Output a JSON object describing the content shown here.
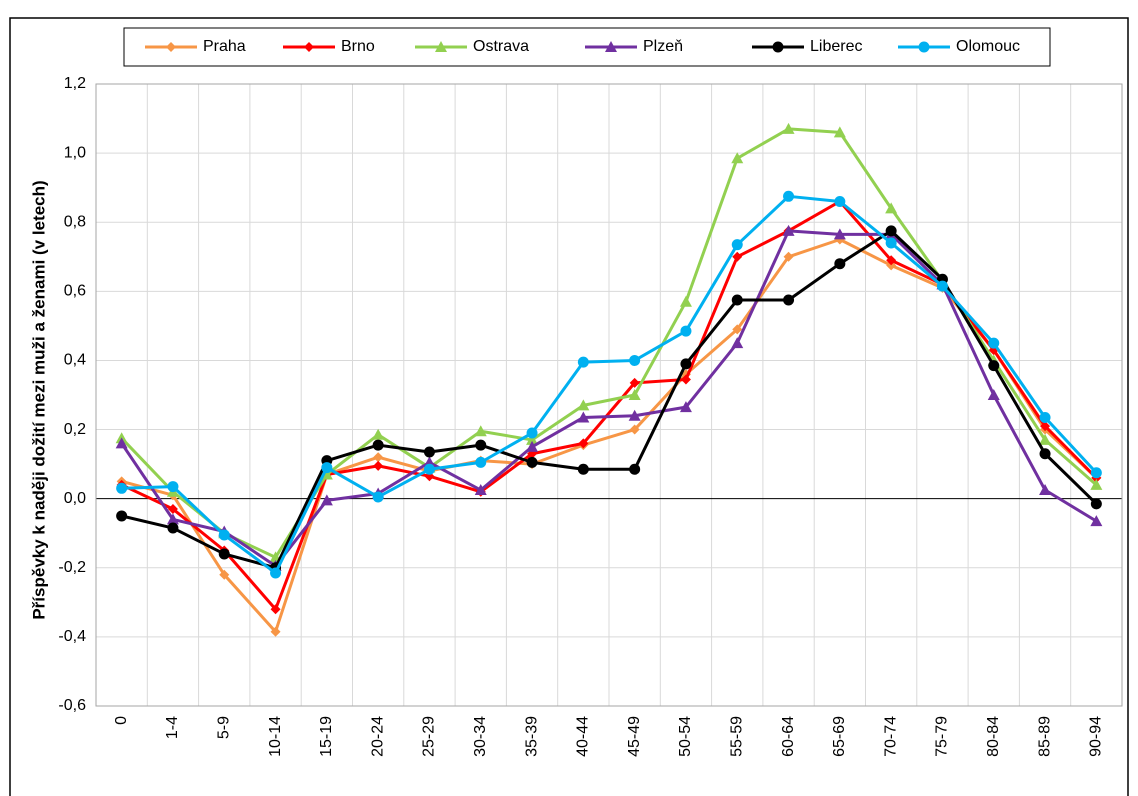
{
  "chart_data": {
    "type": "line",
    "y_label": "Příspěvky k naději dožití mezi muži a ženami (v letech)",
    "categories": [
      "0",
      "1-4",
      "5-9",
      "10-14",
      "15-19",
      "20-24",
      "25-29",
      "30-34",
      "35-39",
      "40-44",
      "45-49",
      "50-54",
      "55-59",
      "60-64",
      "65-69",
      "70-74",
      "75-79",
      "80-84",
      "85-89",
      "90-94"
    ],
    "ylim": [
      -0.6,
      1.2
    ],
    "yticks": [
      {
        "value": -0.6,
        "label": "-0,6"
      },
      {
        "value": -0.4,
        "label": "-0,4"
      },
      {
        "value": -0.2,
        "label": "-0,2"
      },
      {
        "value": 0,
        "label": "0,0"
      },
      {
        "value": 0.2,
        "label": "0,2"
      },
      {
        "value": 0.4,
        "label": "0,4"
      },
      {
        "value": 0.6,
        "label": "0,6"
      },
      {
        "value": 0.8,
        "label": "0,8"
      },
      {
        "value": 1.0,
        "label": "1,0"
      },
      {
        "value": 1.2,
        "label": "1,2"
      }
    ],
    "grid": true,
    "legend": "top",
    "series": [
      {
        "name": "Praha",
        "color": "#f79646",
        "marker": "diamond",
        "values": [
          0.05,
          0.01,
          -0.22,
          -0.385,
          0.07,
          0.12,
          0.08,
          0.11,
          0.1,
          0.155,
          0.2,
          0.36,
          0.49,
          0.7,
          0.75,
          0.675,
          0.61,
          0.43,
          0.2,
          0.06
        ]
      },
      {
        "name": "Brno",
        "color": "#ff0000",
        "marker": "diamond",
        "values": [
          0.04,
          -0.03,
          -0.15,
          -0.32,
          0.07,
          0.095,
          0.065,
          0.02,
          0.13,
          0.16,
          0.335,
          0.345,
          0.7,
          0.775,
          0.86,
          0.69,
          0.62,
          0.43,
          0.21,
          0.06
        ]
      },
      {
        "name": "Ostrava",
        "color": "#92d050",
        "marker": "triangle",
        "values": [
          0.175,
          0.02,
          -0.1,
          -0.17,
          0.07,
          0.185,
          0.09,
          0.195,
          0.17,
          0.27,
          0.3,
          0.57,
          0.985,
          1.07,
          1.06,
          0.84,
          0.63,
          0.4,
          0.17,
          0.04
        ]
      },
      {
        "name": "Plzeň",
        "color": "#7030a0",
        "marker": "triangle",
        "values": [
          0.16,
          -0.06,
          -0.095,
          -0.195,
          -0.005,
          0.015,
          0.105,
          0.025,
          0.15,
          0.235,
          0.24,
          0.265,
          0.45,
          0.775,
          0.765,
          0.765,
          0.62,
          0.3,
          0.025,
          -0.065
        ]
      },
      {
        "name": "Liberec",
        "color": "#000000",
        "marker": "circle",
        "values": [
          -0.05,
          -0.085,
          -0.16,
          -0.2,
          0.11,
          0.155,
          0.135,
          0.155,
          0.105,
          0.085,
          0.085,
          0.39,
          0.575,
          0.575,
          0.68,
          0.775,
          0.635,
          0.385,
          0.13,
          -0.015
        ]
      },
      {
        "name": "Olomouc",
        "color": "#00b0f0",
        "marker": "circle",
        "values": [
          0.03,
          0.035,
          -0.105,
          -0.215,
          0.09,
          0.005,
          0.085,
          0.105,
          0.19,
          0.395,
          0.4,
          0.485,
          0.735,
          0.875,
          0.86,
          0.74,
          0.615,
          0.45,
          0.235,
          0.075
        ]
      }
    ]
  }
}
